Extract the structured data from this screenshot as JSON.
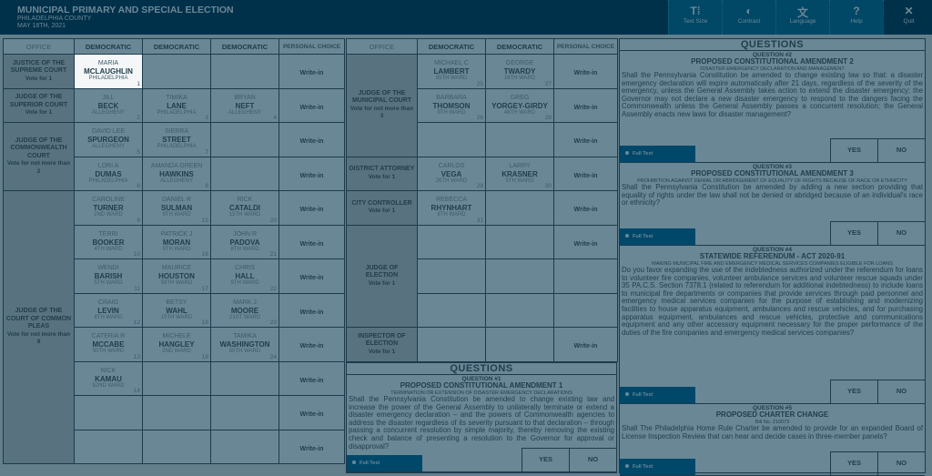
{
  "header": {
    "title": "MUNICIPAL PRIMARY AND SPECIAL ELECTION",
    "county": "PHILADELPHIA COUNTY",
    "date": "MAY 18TH, 2021"
  },
  "toolbar": [
    {
      "label": "Text Size",
      "icon": "text-size-icon",
      "glyph": "T⁞"
    },
    {
      "label": "Contrast",
      "icon": "contrast-icon",
      "glyph": "◐"
    },
    {
      "label": "Language",
      "icon": "language-icon",
      "glyph": "文"
    },
    {
      "label": "Help",
      "icon": "help-icon",
      "glyph": "?"
    },
    {
      "label": "Quit",
      "icon": "close-icon",
      "glyph": "✕"
    }
  ],
  "colors": {
    "header": "#00314a",
    "toolbar": "#004866",
    "cell": "#6a8796",
    "office": "#58727f",
    "selected": "#f4f6f7",
    "full_text": "#00486a"
  },
  "write_in_label": "Write-in",
  "left_table": {
    "headers": [
      "OFFICE",
      "DEMOCRATIC",
      "DEMOCRATIC",
      "DEMOCRATIC",
      "PERSONAL CHOICE"
    ],
    "races": [
      {
        "office": "JUSTICE OF THE SUPREME COURT",
        "instruction": "Vote for 1",
        "rows": [
          {
            "cands": [
              {
                "first": "MARIA",
                "last": "MCLAUGHLIN",
                "loc": "PHILADELPHIA",
                "num": "1",
                "selected": true
              },
              null,
              null
            ],
            "writein": true
          }
        ]
      },
      {
        "office": "JUDGE OF THE SUPERIOR COURT",
        "instruction": "Vote for 1",
        "rows": [
          {
            "cands": [
              {
                "first": "JILL",
                "last": "BECK",
                "loc": "ALLEGHENY",
                "num": "2"
              },
              {
                "first": "TIMIKA",
                "last": "LANE",
                "loc": "PHILADELPHIA",
                "num": "3"
              },
              {
                "first": "BRYAN",
                "last": "NEFT",
                "loc": "ALLEGHENY",
                "num": "4"
              }
            ],
            "writein": true
          }
        ]
      },
      {
        "office": "JUDGE OF THE COMMONWEALTH COURT",
        "instruction": "Vote for not more than 2",
        "rows": [
          {
            "cands": [
              {
                "first": "DAVID LEE",
                "last": "SPURGEON",
                "loc": "ALLEGHENY",
                "num": "5"
              },
              {
                "first": "SIERRA",
                "last": "STREET",
                "loc": "PHILADELPHIA",
                "num": "7"
              },
              null
            ],
            "writein": true
          },
          {
            "cands": [
              {
                "first": "LORI A",
                "last": "DUMAS",
                "loc": "PHILADELPHIA",
                "num": "6"
              },
              {
                "first": "AMANDA GREEN",
                "last": "HAWKINS",
                "loc": "ALLEGHENY",
                "num": "8"
              },
              null
            ],
            "writein": true
          }
        ]
      },
      {
        "office": "JUDGE OF THE COURT OF COMMON PLEAS",
        "instruction": "Vote for not more than 8",
        "rows": [
          {
            "cands": [
              {
                "first": "CAROLINE",
                "last": "TURNER",
                "loc": "2ND WARD",
                "num": "9"
              },
              {
                "first": "DANIEL R",
                "last": "SULMAN",
                "loc": "9TH WARD",
                "num": "15"
              },
              {
                "first": "RICK",
                "last": "CATALDI",
                "loc": "15TH WARD",
                "num": "20"
              }
            ],
            "writein": true
          },
          {
            "cands": [
              {
                "first": "TERRI",
                "last": "BOOKER",
                "loc": "4TH WARD",
                "num": "10"
              },
              {
                "first": "PATRICK J",
                "last": "MORAN",
                "loc": "9TH WARD",
                "num": "16"
              },
              {
                "first": "JOHN R",
                "last": "PADOVA",
                "loc": "8TH WARD",
                "num": "21"
              }
            ],
            "writein": true
          },
          {
            "cands": [
              {
                "first": "WENDI",
                "last": "BARISH",
                "loc": "5TH WARD",
                "num": "11"
              },
              {
                "first": "MAURICE",
                "last": "HOUSTON",
                "loc": "59TH WARD",
                "num": "17"
              },
              {
                "first": "CHRIS",
                "last": "HALL",
                "loc": "9TH WARD",
                "num": "22"
              }
            ],
            "writein": true
          },
          {
            "cands": [
              {
                "first": "CRAIG",
                "last": "LEVIN",
                "loc": "8TH WARD",
                "num": "12"
              },
              {
                "first": "BETSY",
                "last": "WAHL",
                "loc": "15TH WARD",
                "num": "18"
              },
              {
                "first": "MARK J",
                "last": "MOORE",
                "loc": "21ST WARD",
                "num": "23"
              }
            ],
            "writein": true
          },
          {
            "cands": [
              {
                "first": "CATERIA R",
                "last": "MCCABE",
                "loc": "50TH WARD",
                "num": "13"
              },
              {
                "first": "MICHELE",
                "last": "HANGLEY",
                "loc": "2ND WARD",
                "num": "19"
              },
              {
                "first": "TAMIKA",
                "last": "WASHINGTON",
                "loc": "50TH WARD",
                "num": "24"
              }
            ],
            "writein": true
          },
          {
            "cands": [
              {
                "first": "NICK",
                "last": "KAMAU",
                "loc": "52ND WARD",
                "num": "14"
              },
              null,
              null
            ],
            "writein": true
          },
          {
            "cands": [
              null,
              null,
              null
            ],
            "writein": true
          },
          {
            "cands": [
              null,
              null,
              null
            ],
            "writein": true
          }
        ]
      }
    ]
  },
  "middle_table": {
    "headers": [
      "OFFICE",
      "DEMOCRATIC",
      "DEMOCRATIC",
      "PERSONAL CHOICE"
    ],
    "races": [
      {
        "office": "JUDGE OF THE MUNICIPAL COURT",
        "instruction": "Vote for not more than 3",
        "rows": [
          {
            "cands": [
              {
                "first": "MICHAEL C",
                "last": "LAMBERT",
                "loc": "55TH WARD",
                "num": "25"
              },
              {
                "first": "GEORGE",
                "last": "TWARDY",
                "loc": "18TH WARD",
                "num": "27"
              }
            ],
            "writein": true
          },
          {
            "cands": [
              {
                "first": "BARBARA",
                "last": "THOMSON",
                "loc": "9TH WARD",
                "num": "26"
              },
              {
                "first": "GREG",
                "last": "YORGEY-GIRDY",
                "loc": "48TH WARD",
                "num": "28"
              }
            ],
            "writein": true
          },
          {
            "cands": [
              null,
              null
            ],
            "writein": true
          }
        ]
      },
      {
        "office": "DISTRICT ATTORNEY",
        "instruction": "Vote for 1",
        "rows": [
          {
            "cands": [
              {
                "first": "CARLOS",
                "last": "VEGA",
                "loc": "26TH WARD",
                "num": "29"
              },
              {
                "first": "LARRY",
                "last": "KRASNER",
                "loc": "5TH WARD",
                "num": "30"
              }
            ],
            "writein": true
          }
        ]
      },
      {
        "office": "CITY CONTROLLER",
        "instruction": "Vote for 1",
        "rows": [
          {
            "cands": [
              {
                "first": "REBECCA",
                "last": "RHYNHART",
                "loc": "8TH WARD",
                "num": "31"
              },
              null
            ],
            "writein": true
          }
        ]
      },
      {
        "office": "JUDGE OF ELECTION",
        "instruction": "Vote for 1",
        "rows": [
          {
            "cands": [
              null,
              null
            ],
            "writein": true
          },
          {
            "cands": [
              null,
              null
            ],
            "writein": false
          },
          {
            "cands": [
              null,
              null
            ],
            "writein": false
          }
        ]
      },
      {
        "office": "INSPECTOR OF ELECTION",
        "instruction": "Vote for 1",
        "rows": [
          {
            "cands": [
              null,
              null
            ],
            "writein": true
          }
        ]
      }
    ]
  },
  "questions_heading": "QUESTIONS",
  "full_text_label": "Full Text",
  "yes_label": "YES",
  "no_label": "NO",
  "questions": [
    {
      "number": "QUESTION #1",
      "title": "PROPOSED CONSTITUTIONAL AMENDMENT 1",
      "subtitle": "TERMINATION OR EXTENSION OF DISASTER EMERGENCY DECLARATIONS",
      "body": "Shall the Pennsylvania Constitution be amended to change existing law and increase the power of the General Assembly to unilaterally terminate or extend a disaster emergency declaration – and the powers of Commonwealth agencies to address the disaster regardless of its severity pursuant to that declaration – through passing a concurrent resolution by simple majority, thereby removing the existing check and balance of presenting a resolution to the Governor for approval or disapproval?"
    },
    {
      "number": "QUESTION #2",
      "title": "PROPOSED CONSTITUTIONAL AMENDMENT 2",
      "subtitle": "DISASTER EMERGENCY DECLARATION AND MANAGEMENT",
      "body": "Shall the Pennsylvania Constitution be amended to change existing law so that: a disaster emergency declaration will expire automatically after 21 days, regardless of the severity of the emergency, unless the General Assembly takes action to extend the disaster emergency; the Governor may not declare a new disaster emergency to respond to the dangers facing the Commonwealth unless the General Assembly passes a concurrent resolution; the General Assembly enacts new laws for disaster management?"
    },
    {
      "number": "QUESTION #3",
      "title": "PROPOSED CONSTITUTIONAL AMENDMENT 3",
      "subtitle": "PROHIBITION AGAINST DENIAL OR ABRIDGEMENT OF EQUALITY OF RIGHTS BECAUSE OF RACE OR ETHNICITY",
      "body": "Shall the Pennsylvania Constitution be amended by adding a new section providing that equality of rights under the law shall not be denied or abridged because of an individual's race or ethnicity?"
    },
    {
      "number": "QUESTION #4",
      "title": "STATEWIDE REFERENDUM - ACT 2020-91",
      "subtitle": "MAKING MUNICIPAL FIRE AND EMERGENCY MEDICAL SERVICES COMPANIES ELIGIBLE FOR LOANS",
      "body": "Do you favor expanding the use of the indebtedness authorized under the referendum for loans to volunteer fire companies, volunteer ambulance services and volunteer rescue squads under 35 PA.C.S. Section 7378.1 (related to referendum for additional indebtedness) to include loans to municipal fire departments or companies that provide services through paid personnel and emergency medical services companies for the purpose of establishing and modernizing facilities to house apparatus equipment, ambulances and rescue vehicles, and for purchasing apparatus equipment, ambulances and rescue vehicles, protective and communications equipment and any other accessory equipment necessary for the proper performance of the duties of the fire companies and emergency medical services companies?"
    },
    {
      "number": "QUESTION #5",
      "title": "PROPOSED CHARTER CHANGE",
      "subtitle": "Bill No. 210073",
      "body": "Shall The Philadelphia Home Rule Charter be amended to provide for an expanded Board of License Inspection Review that can hear and decide cases in three-member panels?"
    }
  ]
}
